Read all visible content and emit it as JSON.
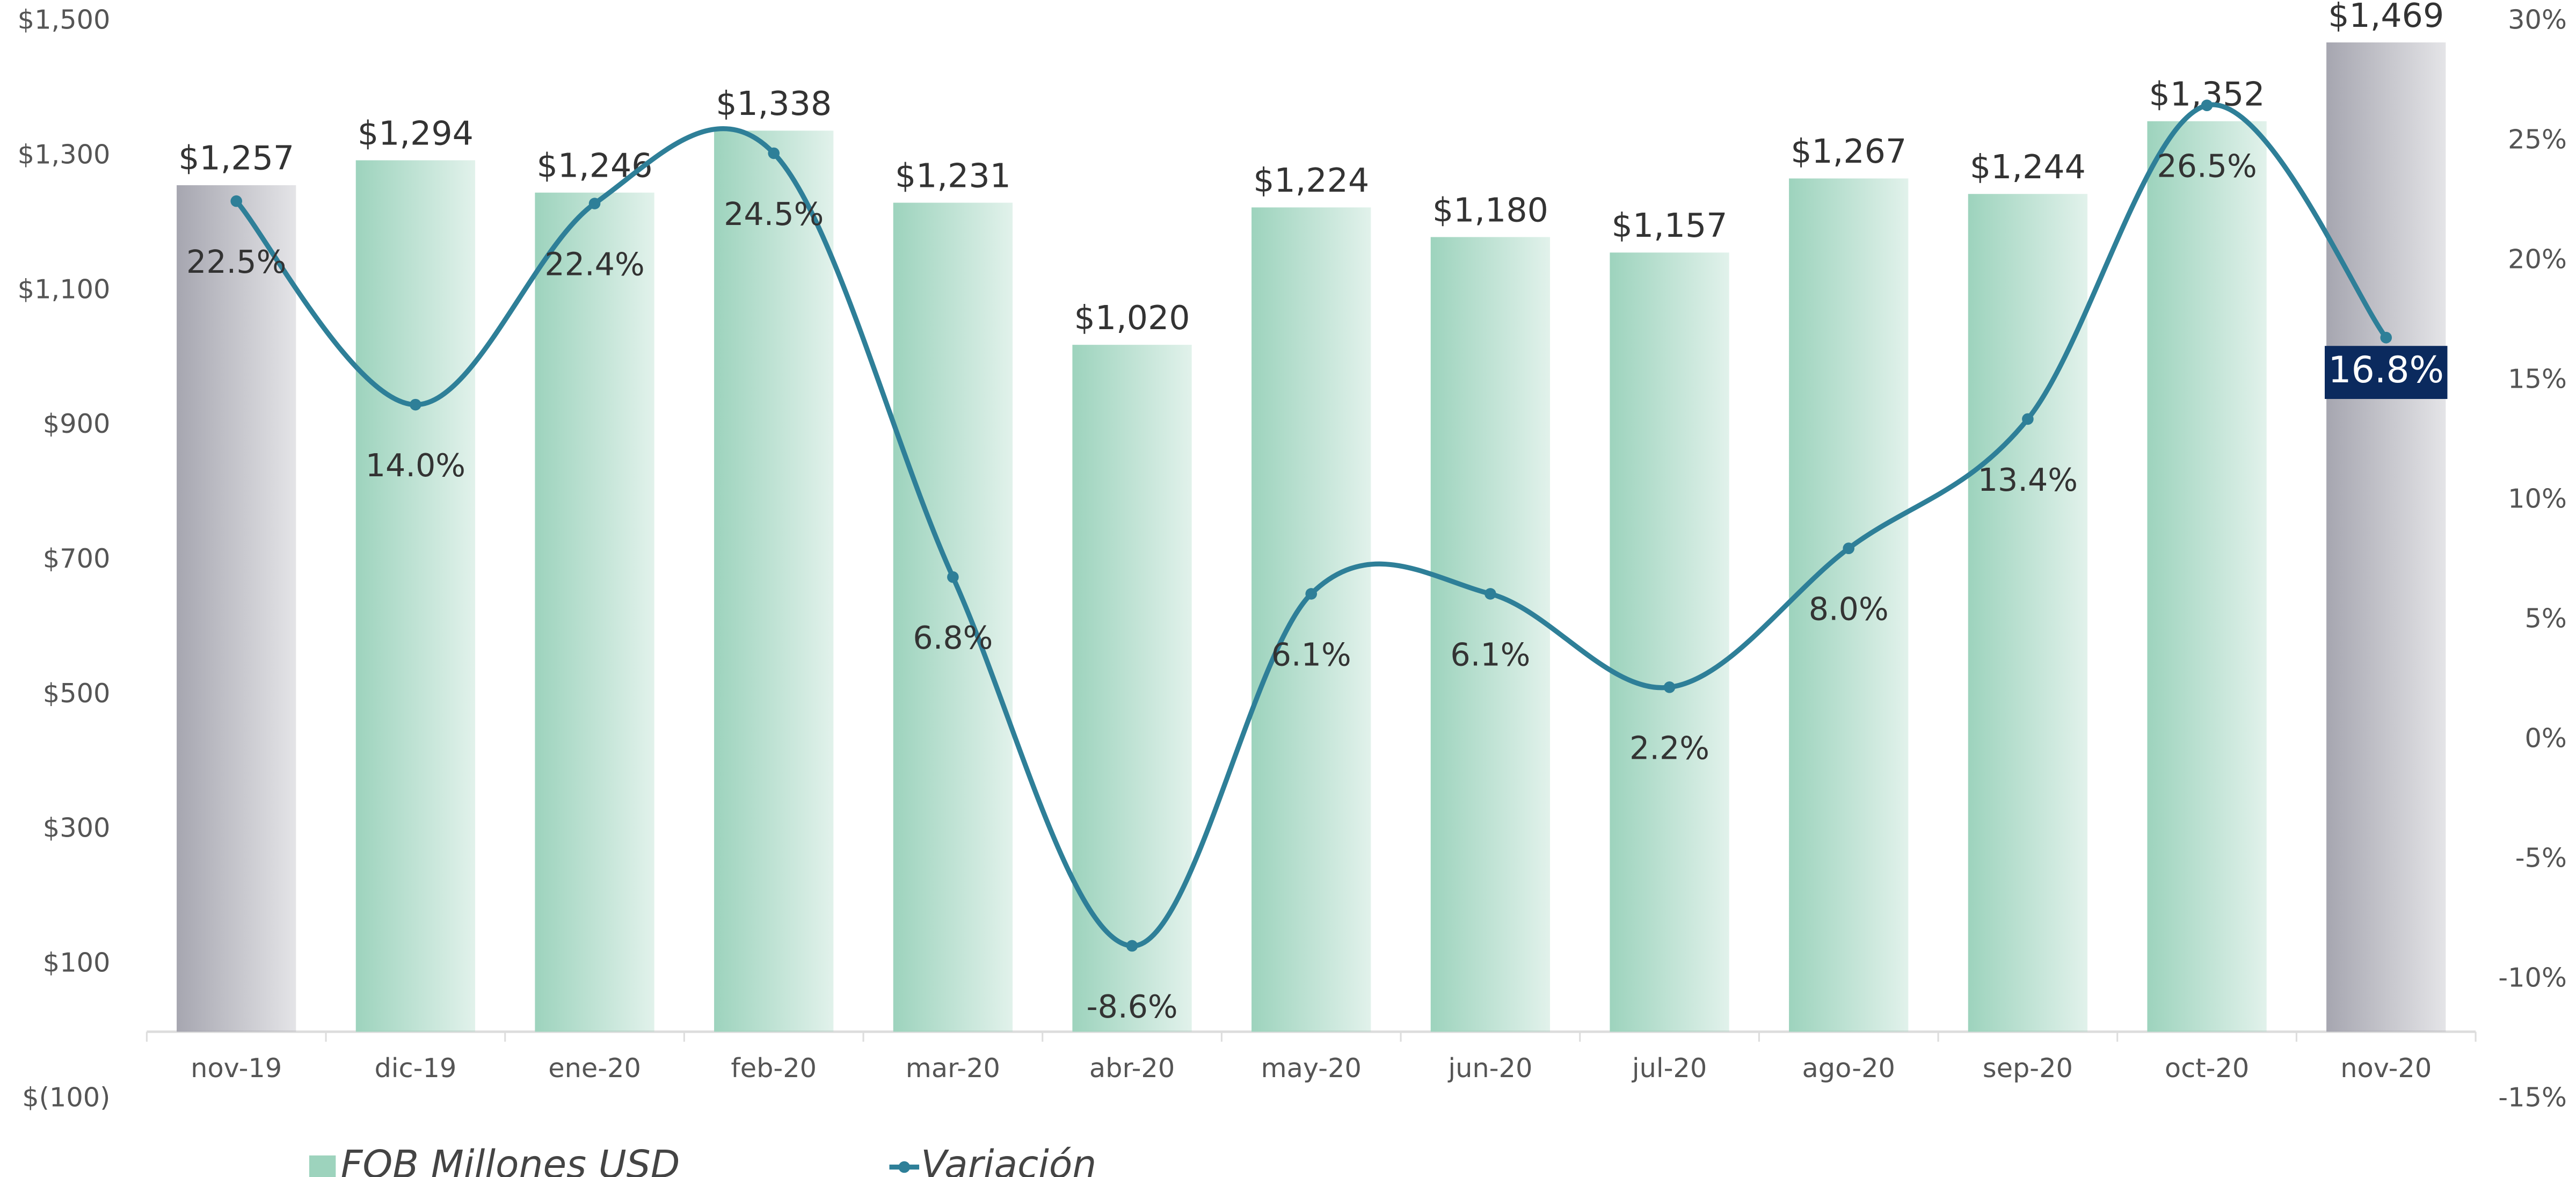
{
  "chart_data": {
    "type": "bar_line",
    "categories": [
      "nov-19",
      "dic-19",
      "ene-20",
      "feb-20",
      "mar-20",
      "abr-20",
      "may-20",
      "jun-20",
      "jul-20",
      "ago-20",
      "sep-20",
      "oct-20",
      "nov-20"
    ],
    "series": [
      {
        "name": "FOB Millones USD",
        "type": "bar",
        "color": "#9dd3bd",
        "colors": [
          "#a6a6b0",
          "#9dd3bd",
          "#9dd3bd",
          "#9dd3bd",
          "#9dd3bd",
          "#9dd3bd",
          "#9dd3bd",
          "#9dd3bd",
          "#9dd3bd",
          "#9dd3bd",
          "#9dd3bd",
          "#9dd3bd",
          "#a6a6b0"
        ],
        "values": [
          1257,
          1294,
          1246,
          1338,
          1231,
          1020,
          1224,
          1180,
          1157,
          1267,
          1244,
          1352,
          1469
        ],
        "value_labels": [
          "$1,257",
          "$1,294",
          "$1,246",
          "$1,338",
          "$1,231",
          "$1,020",
          "$1,224",
          "$1,180",
          "$1,157",
          "$1,267",
          "$1,244",
          "$1,352",
          "$1,469"
        ]
      },
      {
        "name": "Variación",
        "type": "line",
        "axis": "y2",
        "color": "#2e7f98",
        "values": [
          22.5,
          14.0,
          22.4,
          24.5,
          6.8,
          -8.6,
          6.1,
          6.1,
          2.2,
          8.0,
          13.4,
          26.5,
          16.8
        ],
        "value_labels": [
          "22.5%",
          "14.0%",
          "22.4%",
          "24.5%",
          "6.8%",
          "-8.6%",
          "6.1%",
          "6.1%",
          "2.2%",
          "8.0%",
          "13.4%",
          "26.5%",
          "16.8%"
        ],
        "highlight_label_color": "#0b2a5e"
      }
    ],
    "ylim": [
      -100,
      1500
    ],
    "yticks": [
      {
        "value": -100,
        "label": "$(100)"
      },
      {
        "value": 100,
        "label": "$100"
      },
      {
        "value": 300,
        "label": "$300"
      },
      {
        "value": 500,
        "label": "$500"
      },
      {
        "value": 700,
        "label": "$700"
      },
      {
        "value": 900,
        "label": "$900"
      },
      {
        "value": 1100,
        "label": "$1,100"
      },
      {
        "value": 1300,
        "label": "$1,300"
      },
      {
        "value": 1500,
        "label": "$1,500"
      }
    ],
    "y2lim": [
      -15,
      30
    ],
    "y2ticks": [
      {
        "value": -15,
        "label": "-15%"
      },
      {
        "value": -10,
        "label": "-10%"
      },
      {
        "value": -5,
        "label": "-5%"
      },
      {
        "value": 0,
        "label": "0%"
      },
      {
        "value": 5,
        "label": "5%"
      },
      {
        "value": 10,
        "label": "10%"
      },
      {
        "value": 15,
        "label": "15%"
      },
      {
        "value": 20,
        "label": "20%"
      },
      {
        "value": 25,
        "label": "25%"
      },
      {
        "value": 30,
        "label": "30%"
      }
    ]
  }
}
